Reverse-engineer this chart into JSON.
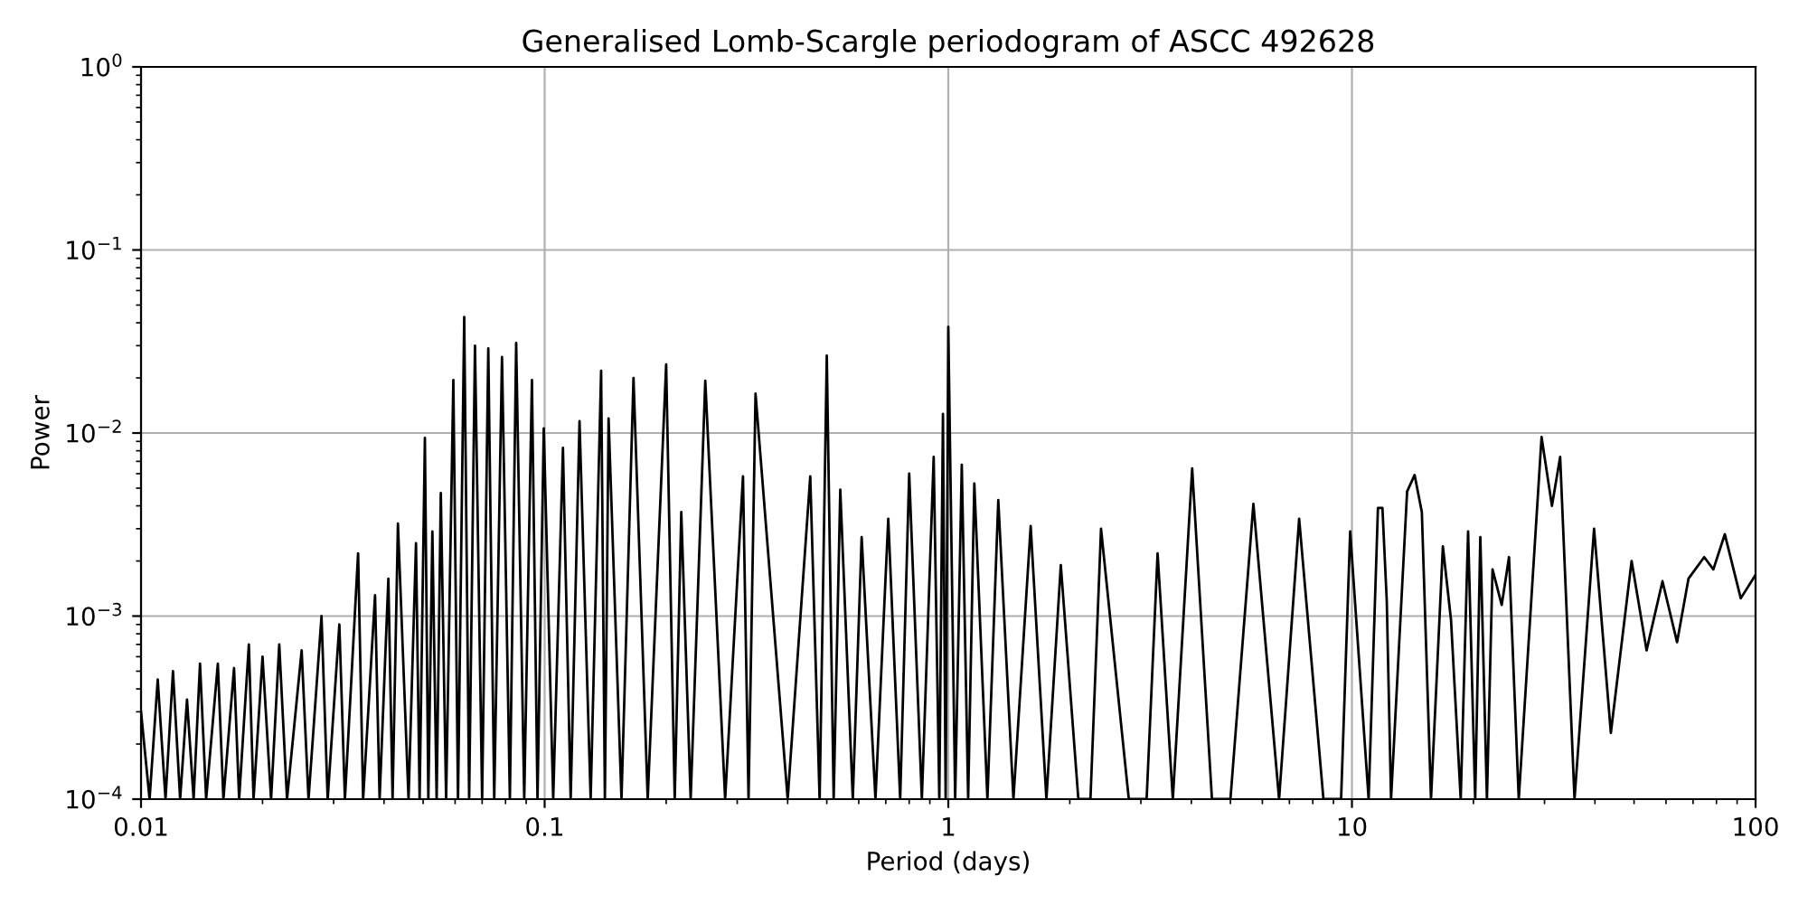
{
  "chart_data": {
    "type": "line",
    "title": "Generalised Lomb-Scargle periodogram of ASCC 492628",
    "xlabel": "Period (days)",
    "ylabel": "Power",
    "log": "xy",
    "grid": true,
    "line_style": "solid",
    "xlim": [
      0.01,
      100
    ],
    "ylim": [
      0.0001,
      1
    ],
    "xticks": [
      0.01,
      0.1,
      1,
      10,
      100
    ],
    "yticks": [
      {
        "value": 0.0001,
        "label": "10$^{−4}$"
      },
      {
        "value": 0.001,
        "label": "10$^{−3}$"
      },
      {
        "value": 0.01,
        "label": "10$^{−2}$"
      },
      {
        "value": 0.1,
        "label": "10$^{−1}$"
      },
      {
        "value": 1,
        "label": "10$^{0}$"
      }
    ],
    "series": [
      {
        "color": "#000000",
        "x": [
          0.01,
          0.0105,
          0.011,
          0.0115,
          0.012,
          0.0125,
          0.013,
          0.0135,
          0.014,
          0.0145,
          0.0155,
          0.016,
          0.017,
          0.0175,
          0.0185,
          0.019,
          0.02,
          0.021,
          0.022,
          0.023,
          0.025,
          0.026,
          0.028,
          0.029,
          0.031,
          0.032,
          0.0345,
          0.0355,
          0.038,
          0.039,
          0.041,
          0.042,
          0.0433,
          0.046,
          0.048,
          0.049,
          0.0505,
          0.0515,
          0.0527,
          0.054,
          0.0553,
          0.057,
          0.0594,
          0.061,
          0.0632,
          0.065,
          0.0672,
          0.07,
          0.0725,
          0.075,
          0.0784,
          0.082,
          0.085,
          0.089,
          0.093,
          0.096,
          0.0995,
          0.105,
          0.111,
          0.116,
          0.122,
          0.13,
          0.138,
          0.141,
          0.144,
          0.155,
          0.166,
          0.18,
          0.2,
          0.21,
          0.218,
          0.23,
          0.25,
          0.28,
          0.31,
          0.32,
          0.333,
          0.4,
          0.455,
          0.48,
          0.5,
          0.52,
          0.54,
          0.58,
          0.61,
          0.66,
          0.71,
          0.76,
          0.8,
          0.86,
          0.92,
          0.95,
          0.97,
          0.985,
          1.0,
          1.04,
          1.08,
          1.12,
          1.16,
          1.25,
          1.33,
          1.45,
          1.6,
          1.75,
          1.9,
          2.1,
          2.25,
          2.39,
          2.8,
          3.1,
          3.3,
          3.6,
          4.02,
          4.5,
          5.0,
          5.7,
          6.6,
          7.4,
          8.5,
          9.4,
          9.9,
          11.0,
          11.6,
          11.9,
          12.2,
          12.5,
          13.7,
          14.3,
          14.9,
          15.7,
          16.8,
          17.6,
          18.6,
          19.4,
          20.2,
          20.8,
          21.6,
          22.3,
          23.5,
          24.5,
          25.9,
          29.5,
          31.3,
          32.8,
          35.6,
          39.8,
          43.8,
          49.3,
          53.7,
          58.8,
          63.9,
          68.2,
          74.6,
          78.6,
          83.9,
          91.9,
          100
        ],
        "values": [
          0.0003,
          0.0001,
          0.00045,
          0.0001,
          0.0005,
          0.0001,
          0.00035,
          0.0001,
          0.00055,
          0.0001,
          0.00055,
          0.0001,
          0.00052,
          0.0001,
          0.0007,
          0.0001,
          0.0006,
          0.0001,
          0.0007,
          0.0001,
          0.00065,
          0.0001,
          0.001,
          0.0001,
          0.0009,
          0.0001,
          0.0022,
          0.0001,
          0.0013,
          0.0001,
          0.0016,
          0.0001,
          0.0032,
          0.0001,
          0.0025,
          0.0001,
          0.0094,
          0.0001,
          0.0029,
          0.0001,
          0.0047,
          0.0001,
          0.0195,
          0.0001,
          0.043,
          0.0001,
          0.03,
          0.0001,
          0.029,
          0.0001,
          0.026,
          0.0001,
          0.031,
          0.0001,
          0.0195,
          0.0001,
          0.0106,
          0.0001,
          0.0083,
          0.0001,
          0.0116,
          0.0001,
          0.0219,
          0.0001,
          0.012,
          0.0001,
          0.02,
          0.0001,
          0.0237,
          0.0001,
          0.0037,
          0.0001,
          0.0193,
          0.0001,
          0.0058,
          0.0001,
          0.0164,
          0.0001,
          0.0058,
          0.0001,
          0.0265,
          0.0001,
          0.0049,
          0.0001,
          0.0027,
          0.0001,
          0.0034,
          0.0001,
          0.006,
          0.0001,
          0.0074,
          0.0001,
          0.0127,
          0.0001,
          0.038,
          0.0001,
          0.0067,
          0.0001,
          0.0053,
          0.0001,
          0.0043,
          0.0001,
          0.0031,
          0.0001,
          0.0019,
          0.0001,
          0.0001,
          0.003,
          0.0001,
          0.0001,
          0.0022,
          0.0001,
          0.0064,
          0.0001,
          0.0001,
          0.0041,
          0.0001,
          0.0034,
          0.0001,
          0.0001,
          0.0029,
          0.0001,
          0.0039,
          0.0039,
          0.0012,
          0.0001,
          0.0048,
          0.0059,
          0.0037,
          0.0001,
          0.0024,
          0.00095,
          0.0001,
          0.0029,
          0.0001,
          0.0027,
          0.0001,
          0.0018,
          0.00115,
          0.0021,
          0.0001,
          0.0095,
          0.004,
          0.0074,
          0.0001,
          0.003,
          0.00023,
          0.002,
          0.00065,
          0.00155,
          0.00072,
          0.0016,
          0.0021,
          0.0018,
          0.0028,
          0.00125,
          0.00168
        ]
      }
    ]
  }
}
